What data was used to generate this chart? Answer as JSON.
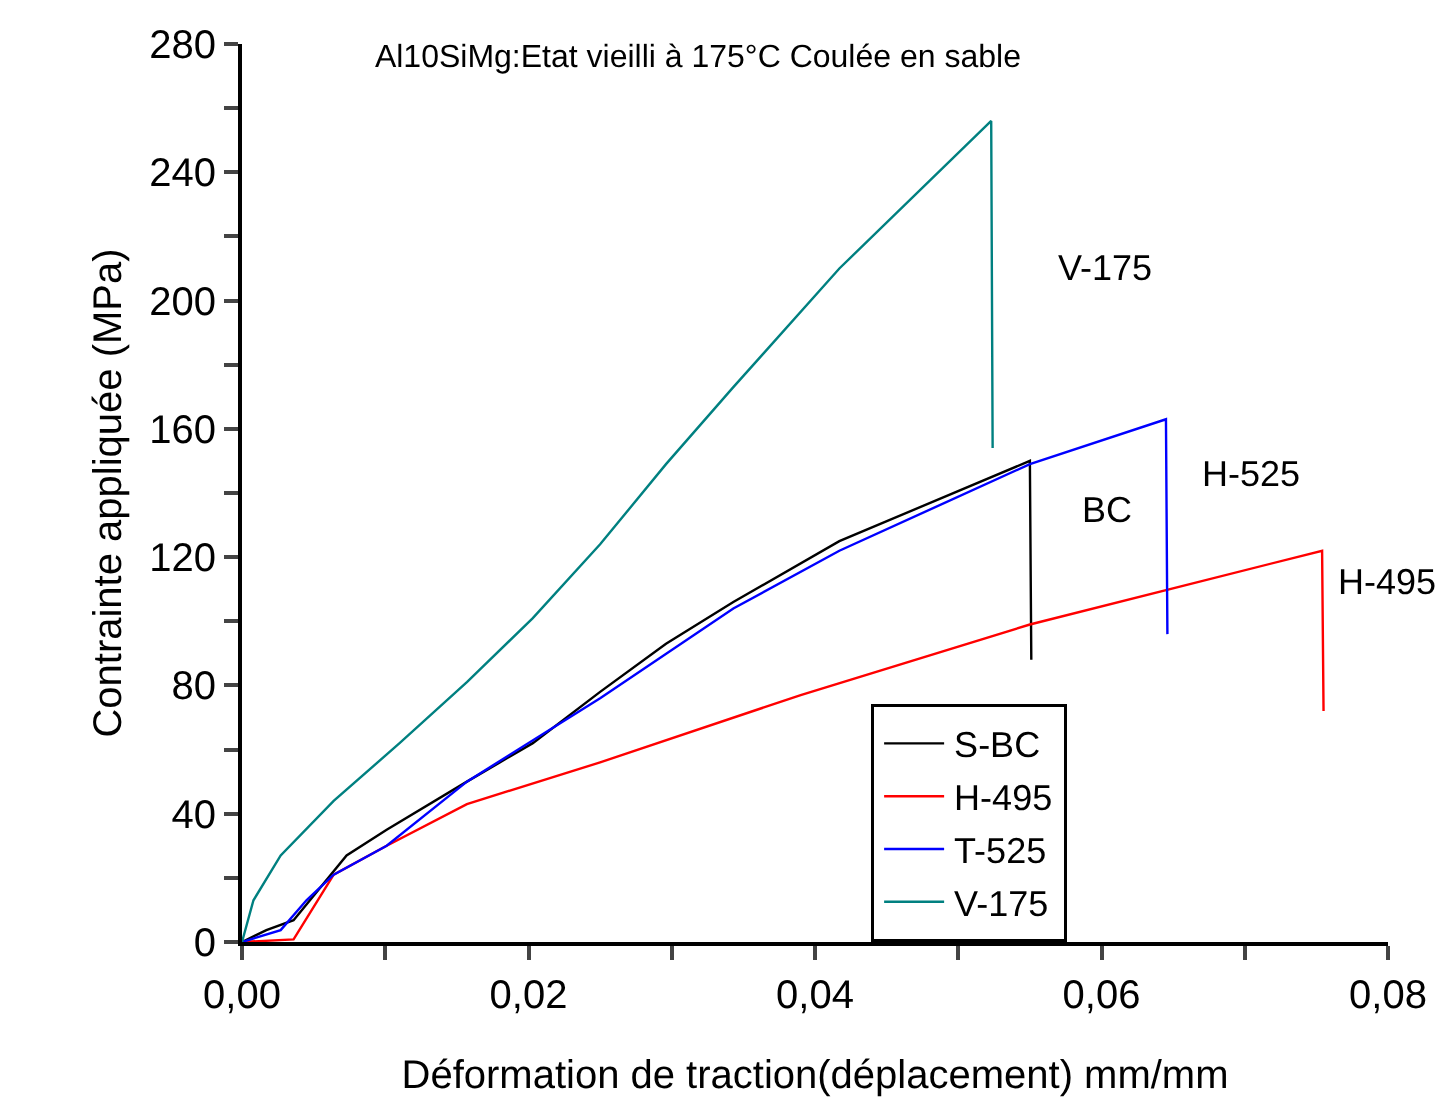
{
  "chart_data": {
    "type": "line",
    "title": "Al10SiMg:Etat vieilli à 175°C Coulée en sable",
    "xlabel": "Déformation de traction(déplacement) mm/mm",
    "ylabel": "Contrainte appliquée (MPa)",
    "series": [
      {
        "name": "S-BC",
        "color": "#000000",
        "x": [
          0,
          0.0017,
          0.0036,
          0.0073,
          0.0101,
          0.0157,
          0.0203,
          0.025,
          0.0296,
          0.0343,
          0.0417,
          0.055,
          0.0551
        ],
        "values": [
          0,
          3.7,
          6.8,
          27,
          35,
          50,
          62,
          78,
          93,
          106,
          125,
          150,
          88
        ]
      },
      {
        "name": "H-495",
        "color": "#ff0000",
        "x": [
          0,
          0.0036,
          0.0064,
          0.0101,
          0.0157,
          0.025,
          0.039,
          0.055,
          0.0754,
          0.0755
        ],
        "values": [
          0,
          0.8,
          21,
          30,
          43,
          56,
          77,
          99,
          122,
          72
        ]
      },
      {
        "name": "T-525",
        "color": "#0000ff",
        "x": [
          0,
          0.0027,
          0.0045,
          0.0064,
          0.0101,
          0.0157,
          0.025,
          0.0343,
          0.0417,
          0.055,
          0.0645,
          0.0646
        ],
        "values": [
          0,
          3.7,
          13,
          21,
          30,
          50,
          76,
          104,
          122,
          149,
          163,
          96
        ]
      },
      {
        "name": "V-175",
        "color": "#008080",
        "x": [
          0,
          0.0008,
          0.0027,
          0.0064,
          0.011,
          0.0157,
          0.0203,
          0.025,
          0.0296,
          0.0343,
          0.0417,
          0.0523,
          0.0524
        ],
        "values": [
          0,
          13,
          27,
          44,
          62,
          81,
          101,
          124,
          149,
          173,
          210,
          256,
          154
        ]
      }
    ],
    "annotations": [
      "V-175",
      "H-525",
      "BC",
      "H-495"
    ],
    "xlim": [
      0,
      0.08
    ],
    "ylim": [
      0,
      280
    ],
    "xticks": [
      {
        "value": 0,
        "label": "0,00"
      },
      {
        "value": 0.01,
        "label": null
      },
      {
        "value": 0.02,
        "label": "0,02"
      },
      {
        "value": 0.03,
        "label": null
      },
      {
        "value": 0.04,
        "label": "0,04"
      },
      {
        "value": 0.05,
        "label": null
      },
      {
        "value": 0.06,
        "label": "0,06"
      },
      {
        "value": 0.07,
        "label": null
      },
      {
        "value": 0.08,
        "label": "0,08"
      }
    ],
    "yticks": [
      0,
      {
        "value": 20,
        "label": null
      },
      40,
      {
        "value": 60,
        "label": null
      },
      80,
      {
        "value": 100,
        "label": null
      },
      120,
      {
        "value": 140,
        "label": null
      },
      160,
      {
        "value": 180,
        "label": null
      },
      200,
      {
        "value": 220,
        "label": null
      },
      240,
      {
        "value": 260,
        "label": null
      },
      280
    ],
    "legend": "bottom right",
    "grid": false,
    "marker": "none",
    "line_style": "solid"
  }
}
